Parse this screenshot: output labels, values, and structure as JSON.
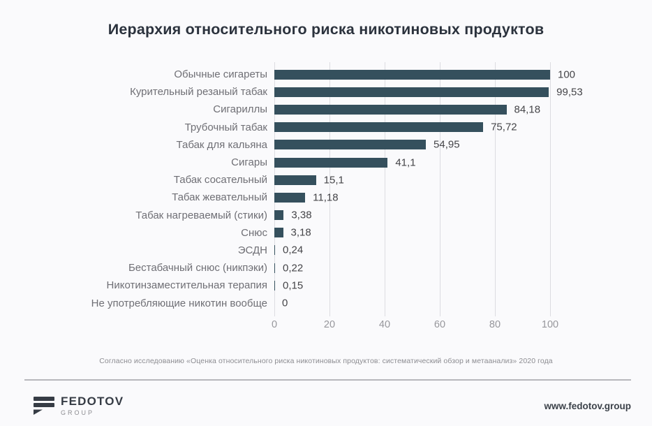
{
  "page": {
    "title": "Иерархия относительного риска никотиновых продуктов",
    "footnote": "Согласно исследованию «Оценка относительного риска никотиновых продуктов: систематический обзор и метаанализ» 2020 года"
  },
  "chart_data": {
    "type": "bar",
    "orientation": "horizontal",
    "title": "Иерархия относительного риска никотиновых продуктов",
    "categories": [
      "Обычные сигареты",
      "Курительный резаный табак",
      "Сигариллы",
      "Трубочный табак",
      "Табак для кальяна",
      "Сигары",
      "Табак сосательный",
      "Табак жевательный",
      "Табак нагреваемый (стики)",
      "Снюс",
      "ЭСДН",
      "Бестабачный снюс (никпэки)",
      "Никотинзаместительная терапия",
      "Не употребляющие никотин вообще"
    ],
    "values": [
      100,
      99.53,
      84.18,
      75.72,
      54.95,
      41.1,
      15.1,
      11.18,
      3.38,
      3.18,
      0.24,
      0.22,
      0.15,
      0
    ],
    "value_labels": [
      "100",
      "99,53",
      "84,18",
      "75,72",
      "54,95",
      "41,1",
      "15,1",
      "11,18",
      "3,38",
      "3,18",
      "0,24",
      "0,22",
      "0,15",
      "0"
    ],
    "x_ticks": [
      0,
      20,
      40,
      60,
      80,
      100
    ],
    "xlim": [
      0,
      110
    ],
    "grid": true,
    "legend": "none",
    "bar_color": "#35505d"
  },
  "footer": {
    "brand_name": "FEDOTOV",
    "brand_sub": "GROUP",
    "website": "www.fedotov.group"
  },
  "colors": {
    "background": "#fafafc",
    "title_text": "#2b323d",
    "bar": "#35505d",
    "category_text": "#6f6f75",
    "value_text": "#454549",
    "tick_text": "#97979c",
    "gridline": "#dcdce1",
    "footnote_text": "#8c8c91",
    "divider": "#b7b7bc",
    "brand_text": "#363c45",
    "website_text": "#3c424a"
  }
}
